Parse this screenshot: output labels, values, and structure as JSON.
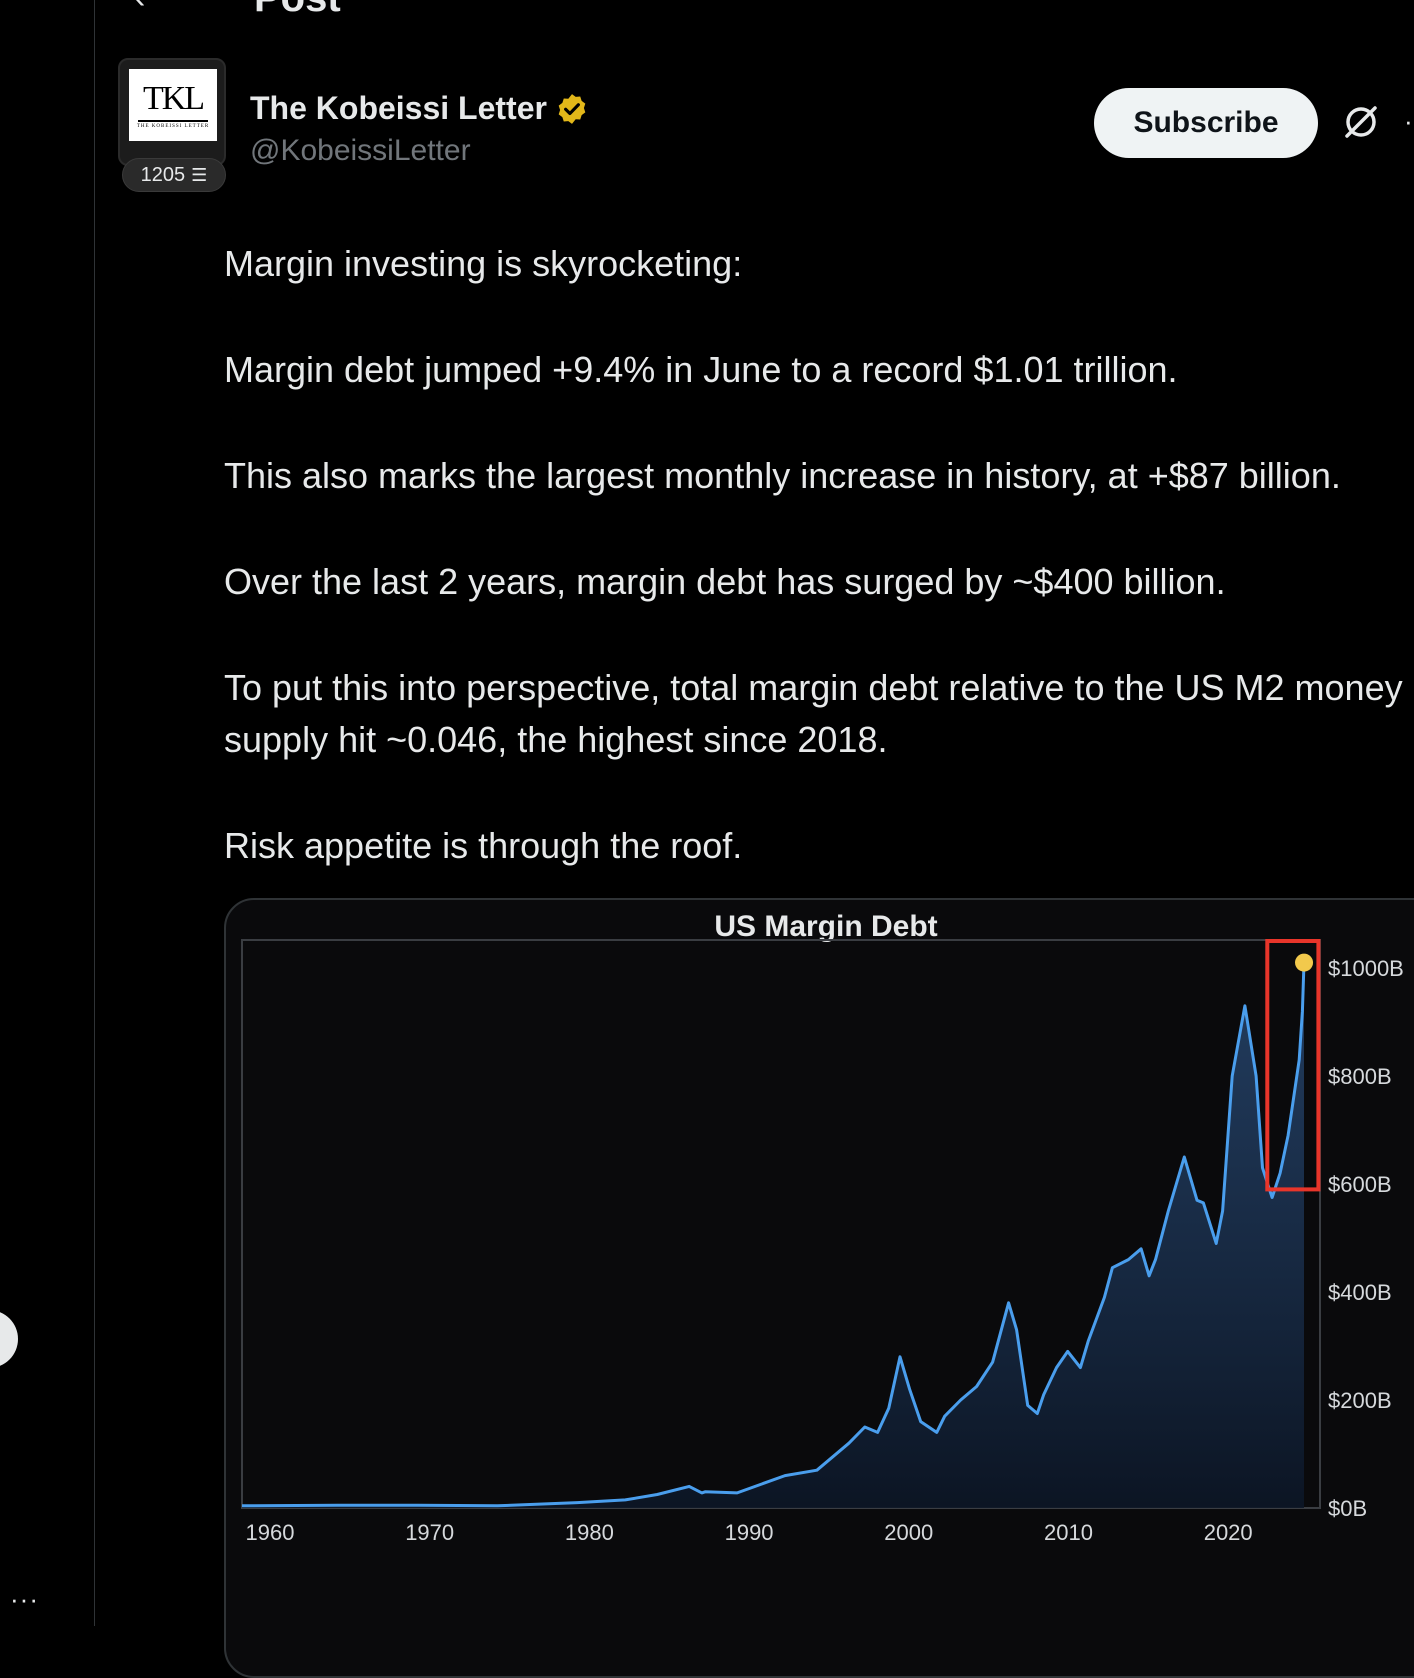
{
  "topbar": {
    "title": "Post"
  },
  "left_rail": {
    "more_label": "···"
  },
  "author": {
    "name": "The Kobeissi Letter",
    "handle": "@KobeissiLetter",
    "logo_text": "TKL",
    "logo_subtitle": "THE KOBEISSI LETTER",
    "badge_count": "1205"
  },
  "actions": {
    "subscribe_label": "Subscribe",
    "more_label": "···"
  },
  "tweet": {
    "paragraphs": [
      "Margin investing is skyrocketing:",
      "Margin debt jumped +9.4% in June to a record $1.01 trillion.",
      "This also marks the largest monthly increase in history, at +$87 billion.",
      "Over the last 2 years, margin debt has surged by ~$400 billion.",
      "To put this into perspective, total margin debt relative to the US M2 money supply hit ~0.046, the highest since 2018.",
      "Risk appetite is through the roof."
    ]
  },
  "colors": {
    "line": "#4a9eed",
    "highlight": "#e8352a",
    "marker": "#f2c94c"
  },
  "chart_data": {
    "type": "area",
    "title": "US Margin Debt",
    "xlabel": "",
    "ylabel": "",
    "xlim": [
      1959,
      2026.5
    ],
    "ylim": [
      0,
      1000
    ],
    "x_ticks": [
      1960,
      1970,
      1980,
      1990,
      2000,
      2010,
      2020
    ],
    "y_ticks": [
      {
        "value": 0,
        "label": "$0B"
      },
      {
        "value": 200,
        "label": "$200B"
      },
      {
        "value": 400,
        "label": "$400B"
      },
      {
        "value": 600,
        "label": "$600B"
      },
      {
        "value": 800,
        "label": "$800B"
      },
      {
        "value": 1000,
        "label": "$1000B"
      }
    ],
    "series": [
      {
        "x": [
          1959,
          1965,
          1970,
          1975,
          1980,
          1983,
          1985,
          1987,
          1987.8,
          1988,
          1990,
          1993,
          1995,
          1996,
          1997,
          1998,
          1998.8,
          1999.5,
          2000.2,
          2000.8,
          2001.5,
          2002.5,
          2003,
          2004,
          2005,
          2006,
          2007,
          2007.5,
          2008.2,
          2008.8,
          2009.2,
          2010,
          2010.7,
          2011.5,
          2012,
          2013,
          2013.5,
          2014.5,
          2015.3,
          2015.8,
          2016.2,
          2017,
          2018,
          2018.8,
          2019.2,
          2020,
          2020.4,
          2021,
          2021.8,
          2022.5,
          2022.9,
          2023.5,
          2024,
          2024.5,
          2025.2,
          2025.4,
          2025.5
        ],
        "y": [
          4,
          5,
          5,
          4,
          10,
          15,
          25,
          40,
          28,
          30,
          28,
          60,
          70,
          95,
          120,
          150,
          140,
          185,
          280,
          220,
          160,
          140,
          170,
          200,
          225,
          270,
          380,
          330,
          190,
          175,
          210,
          260,
          290,
          260,
          310,
          390,
          445,
          460,
          480,
          430,
          460,
          550,
          650,
          570,
          565,
          490,
          550,
          800,
          930,
          800,
          630,
          575,
          620,
          690,
          830,
          920,
          1010
        ]
      }
    ],
    "annotations": [
      "highlight box around 2024–2025",
      "marker at latest value"
    ]
  }
}
